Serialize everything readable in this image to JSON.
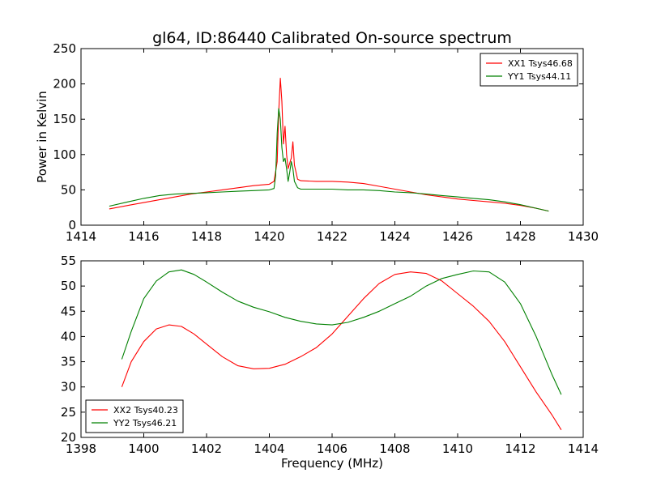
{
  "title": "gl64, ID:86440 Calibrated On-source spectrum",
  "xlabel": "Frequency (MHz)",
  "colors": {
    "red": "#ff0000",
    "green": "#008000"
  },
  "chart_data": [
    {
      "type": "line",
      "title": "gl64, ID:86440 Calibrated On-source spectrum",
      "xlabel": "",
      "ylabel": "Power in Kelvin",
      "xlim": [
        1414,
        1430
      ],
      "ylim": [
        0,
        250
      ],
      "xticks": [
        "1414",
        "1416",
        "1418",
        "1420",
        "1422",
        "1424",
        "1426",
        "1428",
        "1430"
      ],
      "yticks": [
        "0",
        "50",
        "100",
        "150",
        "200",
        "250"
      ],
      "legend_position": "top-right",
      "series": [
        {
          "name": "XX1 Tsys46.68",
          "color": "#ff0000",
          "x": [
            1414.9,
            1415.5,
            1416,
            1416.5,
            1417,
            1417.5,
            1418,
            1418.5,
            1419,
            1419.5,
            1420,
            1420.15,
            1420.25,
            1420.3,
            1420.35,
            1420.4,
            1420.45,
            1420.5,
            1420.55,
            1420.6,
            1420.65,
            1420.7,
            1420.75,
            1420.8,
            1420.9,
            1421,
            1421.5,
            1422,
            1422.5,
            1423,
            1423.5,
            1424,
            1424.5,
            1425,
            1425.5,
            1426,
            1426.5,
            1427,
            1427.5,
            1428,
            1428.5,
            1428.9
          ],
          "y": [
            23,
            28,
            32,
            36,
            40,
            44,
            47,
            50,
            53,
            56,
            58,
            62,
            90,
            160,
            208,
            175,
            115,
            140,
            100,
            80,
            88,
            95,
            118,
            85,
            65,
            63,
            62,
            62,
            61,
            59,
            55,
            51,
            47,
            43,
            40,
            37,
            35,
            33,
            31,
            28,
            24,
            20
          ]
        },
        {
          "name": "YY1 Tsys44.11",
          "color": "#008000",
          "x": [
            1414.9,
            1415.5,
            1416,
            1416.5,
            1417,
            1417.5,
            1418,
            1418.5,
            1419,
            1419.5,
            1420,
            1420.15,
            1420.2,
            1420.25,
            1420.3,
            1420.35,
            1420.4,
            1420.45,
            1420.5,
            1420.55,
            1420.6,
            1420.65,
            1420.7,
            1420.75,
            1420.8,
            1420.9,
            1421,
            1421.5,
            1422,
            1422.5,
            1423,
            1423.5,
            1424,
            1424.5,
            1425,
            1425.5,
            1426,
            1426.5,
            1427,
            1427.5,
            1428,
            1428.5,
            1428.9
          ],
          "y": [
            27,
            33,
            38,
            42,
            44,
            45,
            46,
            47,
            48,
            49,
            50,
            52,
            70,
            130,
            165,
            150,
            110,
            90,
            95,
            80,
            62,
            75,
            90,
            80,
            62,
            53,
            51,
            51,
            51,
            50,
            50,
            49,
            47,
            46,
            44,
            42,
            40,
            38,
            36,
            33,
            29,
            24,
            20
          ]
        }
      ]
    },
    {
      "type": "line",
      "title": "",
      "xlabel": "Frequency (MHz)",
      "ylabel": "",
      "xlim": [
        1398,
        1414
      ],
      "ylim": [
        20,
        55
      ],
      "xticks": [
        "1398",
        "1400",
        "1402",
        "1404",
        "1406",
        "1408",
        "1410",
        "1412",
        "1414"
      ],
      "yticks": [
        "20",
        "25",
        "30",
        "35",
        "40",
        "45",
        "50",
        "55"
      ],
      "legend_position": "bottom-left",
      "series": [
        {
          "name": "XX2 Tsys40.23",
          "color": "#ff0000",
          "x": [
            1399.3,
            1399.6,
            1400,
            1400.4,
            1400.8,
            1401.2,
            1401.6,
            1402,
            1402.5,
            1403,
            1403.5,
            1404,
            1404.5,
            1405,
            1405.5,
            1406,
            1406.5,
            1407,
            1407.5,
            1408,
            1408.5,
            1409,
            1409.5,
            1410,
            1410.5,
            1411,
            1411.5,
            1412,
            1412.5,
            1413,
            1413.3
          ],
          "y": [
            30,
            35,
            39,
            41.5,
            42.3,
            42,
            40.5,
            38.5,
            36,
            34.2,
            33.6,
            33.7,
            34.5,
            36,
            37.8,
            40.5,
            44,
            47.5,
            50.5,
            52.3,
            52.8,
            52.5,
            51,
            48.5,
            46,
            43,
            39,
            34,
            29,
            24.5,
            21.5
          ]
        },
        {
          "name": "YY2 Tsys46.21",
          "color": "#008000",
          "x": [
            1399.3,
            1399.6,
            1400,
            1400.4,
            1400.8,
            1401.2,
            1401.6,
            1402,
            1402.5,
            1403,
            1403.5,
            1404,
            1404.5,
            1405,
            1405.5,
            1406,
            1406.5,
            1407,
            1407.5,
            1408,
            1408.5,
            1409,
            1409.5,
            1410,
            1410.5,
            1411,
            1411.5,
            1412,
            1412.5,
            1413,
            1413.3
          ],
          "y": [
            35.5,
            41,
            47.5,
            51,
            52.8,
            53.2,
            52.3,
            50.8,
            48.8,
            47,
            45.8,
            44.9,
            43.8,
            43,
            42.5,
            42.3,
            42.8,
            43.8,
            45,
            46.5,
            48,
            50,
            51.5,
            52.3,
            53,
            52.8,
            50.8,
            46.5,
            40,
            32.5,
            28.5
          ]
        }
      ]
    }
  ]
}
